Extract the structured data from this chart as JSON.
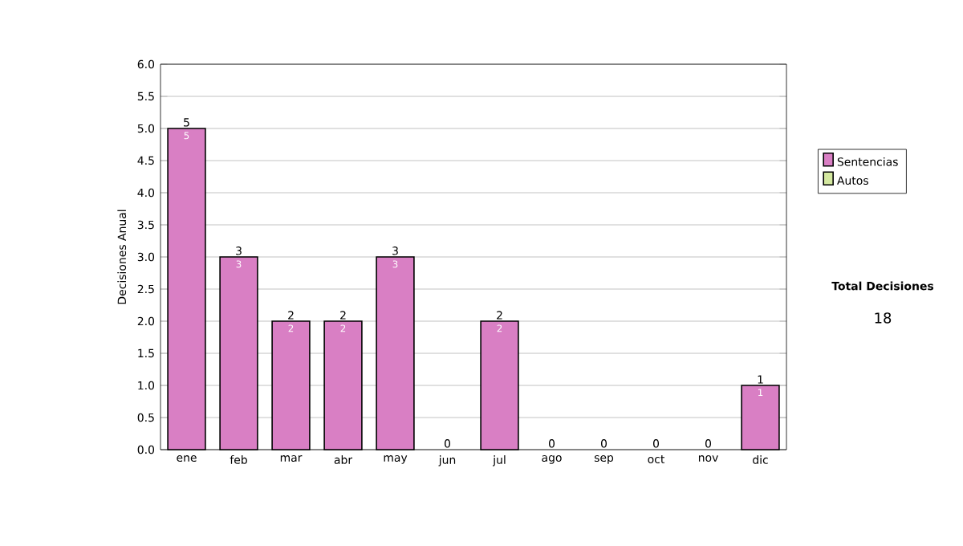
{
  "chart_data": {
    "type": "bar",
    "stacked": true,
    "ylabel": "Decisiones Anual",
    "categories": [
      "ene",
      "feb",
      "mar",
      "abr",
      "may",
      "jun",
      "jul",
      "ago",
      "sep",
      "oct",
      "nov",
      "dic"
    ],
    "series": [
      {
        "name": "Sentencias",
        "color": "#d97fc4",
        "values": [
          5,
          3,
          2,
          2,
          3,
          0,
          2,
          0,
          0,
          0,
          0,
          1
        ],
        "value_labels": [
          "5",
          "3",
          "2",
          "2",
          "3",
          null,
          "2",
          null,
          null,
          null,
          null,
          "1"
        ]
      },
      {
        "name": "Autos",
        "color": "#d4e8a0",
        "values": [
          0,
          0,
          0,
          0,
          0,
          0,
          0,
          0,
          0,
          0,
          0,
          0
        ]
      }
    ],
    "totals": [
      "5",
      "3",
      "2",
      "2",
      "3",
      "0",
      "2",
      "0",
      "0",
      "0",
      "0",
      "1"
    ],
    "ylim": [
      0,
      6
    ],
    "yticks": [
      {
        "value": 0,
        "label": "0.0"
      },
      {
        "value": 0.5,
        "label": "0.5"
      },
      {
        "value": 1,
        "label": "1.0"
      },
      {
        "value": 1.5,
        "label": "1.5"
      },
      {
        "value": 2,
        "label": "2.0"
      },
      {
        "value": 2.5,
        "label": "2.5"
      },
      {
        "value": 3,
        "label": "3.0"
      },
      {
        "value": 3.5,
        "label": "3.5"
      },
      {
        "value": 4,
        "label": "4.0"
      },
      {
        "value": 4.5,
        "label": "4.5"
      },
      {
        "value": 5,
        "label": "5.0"
      },
      {
        "value": 5.5,
        "label": "5.5"
      },
      {
        "value": 6,
        "label": "6.0"
      }
    ],
    "grid": "y",
    "legend": "right",
    "annotations": [
      "Total Decisiones",
      "18"
    ]
  }
}
